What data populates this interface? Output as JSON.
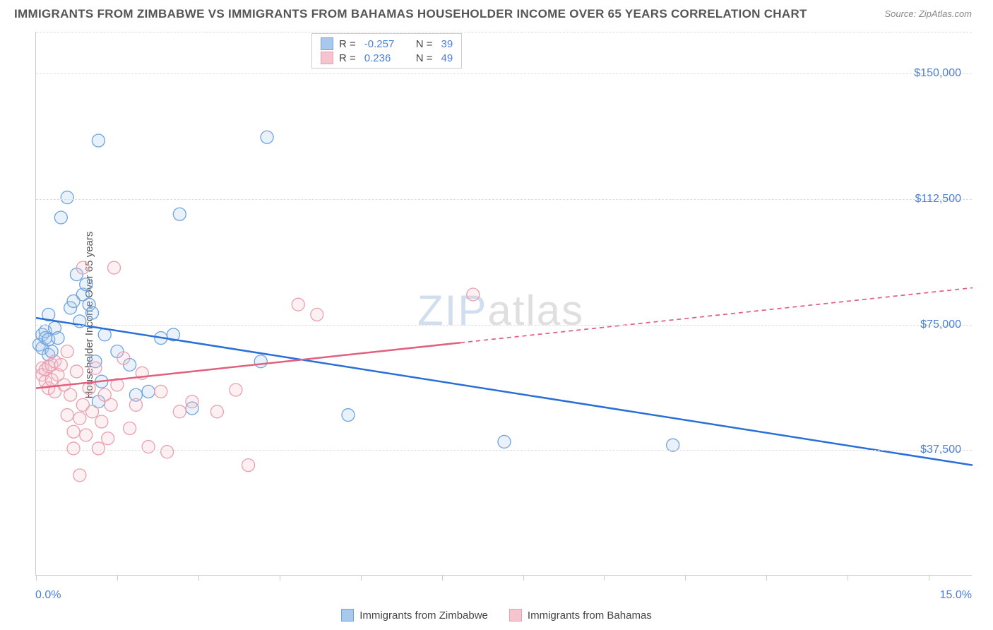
{
  "title": "IMMIGRANTS FROM ZIMBABWE VS IMMIGRANTS FROM BAHAMAS HOUSEHOLDER INCOME OVER 65 YEARS CORRELATION CHART",
  "source": "Source: ZipAtlas.com",
  "y_axis_label": "Householder Income Over 65 years",
  "watermark": {
    "zip": "ZIP",
    "atlas": "atlas"
  },
  "chart": {
    "type": "scatter",
    "xlim": [
      0,
      15
    ],
    "ylim": [
      0,
      162500
    ],
    "x_tick_positions": [
      0,
      1.3,
      2.6,
      3.9,
      5.2,
      6.5,
      7.8,
      9.1,
      10.4,
      11.7,
      13.0,
      14.3
    ],
    "x_tick_labels": {
      "0": "0.0%",
      "15": "15.0%"
    },
    "y_ticks": [
      37500,
      75000,
      112500,
      150000
    ],
    "y_tick_labels": [
      "$37,500",
      "$75,000",
      "$112,500",
      "$150,000"
    ],
    "grid_color": "#dddddd",
    "axis_color": "#cccccc",
    "background_color": "#ffffff",
    "marker_radius": 9,
    "marker_stroke_width": 1.3,
    "marker_fill_opacity": 0.25,
    "line_width": 2.5
  },
  "series": [
    {
      "name": "Immigrants from Zimbabwe",
      "color_fill": "#a8c8ec",
      "color_stroke": "#6fa3dd",
      "line_color": "#2a6fd6",
      "R": "-0.257",
      "N": "39",
      "trend": {
        "x1": 0,
        "y1": 77000,
        "x2": 15,
        "y2": 33000,
        "solid_until_x": 15
      },
      "points": [
        [
          0.05,
          69000
        ],
        [
          0.1,
          72000
        ],
        [
          0.1,
          68000
        ],
        [
          0.15,
          73000
        ],
        [
          0.15,
          71000
        ],
        [
          0.2,
          70500
        ],
        [
          0.2,
          66000
        ],
        [
          0.2,
          78000
        ],
        [
          0.25,
          67000
        ],
        [
          0.3,
          74000
        ],
        [
          0.35,
          71000
        ],
        [
          0.4,
          107000
        ],
        [
          0.5,
          113000
        ],
        [
          0.55,
          80000
        ],
        [
          0.6,
          82000
        ],
        [
          0.65,
          90000
        ],
        [
          0.7,
          76000
        ],
        [
          0.75,
          84000
        ],
        [
          0.8,
          87000
        ],
        [
          0.85,
          81000
        ],
        [
          0.9,
          78500
        ],
        [
          0.95,
          64000
        ],
        [
          1.0,
          52000
        ],
        [
          1.0,
          130000
        ],
        [
          1.05,
          58000
        ],
        [
          1.1,
          72000
        ],
        [
          1.3,
          67000
        ],
        [
          1.5,
          63000
        ],
        [
          1.6,
          54000
        ],
        [
          1.8,
          55000
        ],
        [
          2.0,
          71000
        ],
        [
          2.2,
          72000
        ],
        [
          2.3,
          108000
        ],
        [
          2.5,
          50000
        ],
        [
          3.6,
          64000
        ],
        [
          3.7,
          131000
        ],
        [
          5.0,
          48000
        ],
        [
          7.5,
          40000
        ],
        [
          10.2,
          39000
        ]
      ]
    },
    {
      "name": "Immigrants from Bahamas",
      "color_fill": "#f5c4ce",
      "color_stroke": "#e8a0b0",
      "line_color": "#e0607d",
      "R": "0.236",
      "N": "49",
      "trend": {
        "x1": 0,
        "y1": 56000,
        "x2": 15,
        "y2": 86000,
        "solid_until_x": 6.8
      },
      "points": [
        [
          0.1,
          62000
        ],
        [
          0.1,
          60000
        ],
        [
          0.15,
          61500
        ],
        [
          0.15,
          58000
        ],
        [
          0.2,
          62500
        ],
        [
          0.2,
          56000
        ],
        [
          0.25,
          63000
        ],
        [
          0.25,
          58500
        ],
        [
          0.3,
          64000
        ],
        [
          0.3,
          55000
        ],
        [
          0.35,
          60000
        ],
        [
          0.4,
          63000
        ],
        [
          0.45,
          57000
        ],
        [
          0.5,
          67000
        ],
        [
          0.5,
          48000
        ],
        [
          0.55,
          54000
        ],
        [
          0.6,
          43000
        ],
        [
          0.6,
          38000
        ],
        [
          0.65,
          61000
        ],
        [
          0.7,
          47000
        ],
        [
          0.7,
          30000
        ],
        [
          0.75,
          51000
        ],
        [
          0.75,
          92000
        ],
        [
          0.8,
          42000
        ],
        [
          0.85,
          56000
        ],
        [
          0.9,
          49000
        ],
        [
          0.95,
          62000
        ],
        [
          1.0,
          38000
        ],
        [
          1.05,
          46000
        ],
        [
          1.1,
          54000
        ],
        [
          1.15,
          41000
        ],
        [
          1.2,
          51000
        ],
        [
          1.25,
          92000
        ],
        [
          1.3,
          57000
        ],
        [
          1.4,
          65000
        ],
        [
          1.5,
          44000
        ],
        [
          1.6,
          51000
        ],
        [
          1.7,
          60500
        ],
        [
          1.8,
          38500
        ],
        [
          2.0,
          55000
        ],
        [
          2.1,
          37000
        ],
        [
          2.3,
          49000
        ],
        [
          2.5,
          52000
        ],
        [
          2.9,
          49000
        ],
        [
          3.2,
          55500
        ],
        [
          3.4,
          33000
        ],
        [
          4.2,
          81000
        ],
        [
          4.5,
          78000
        ],
        [
          7.0,
          84000
        ]
      ]
    }
  ],
  "legend_labels": {
    "R": "R =",
    "N": "N ="
  },
  "bottom_legend": [
    {
      "label": "Immigrants from Zimbabwe",
      "fill": "#a8c8ec",
      "stroke": "#6fa3dd"
    },
    {
      "label": "Immigrants from Bahamas",
      "fill": "#f5c4ce",
      "stroke": "#e8a0b0"
    }
  ]
}
